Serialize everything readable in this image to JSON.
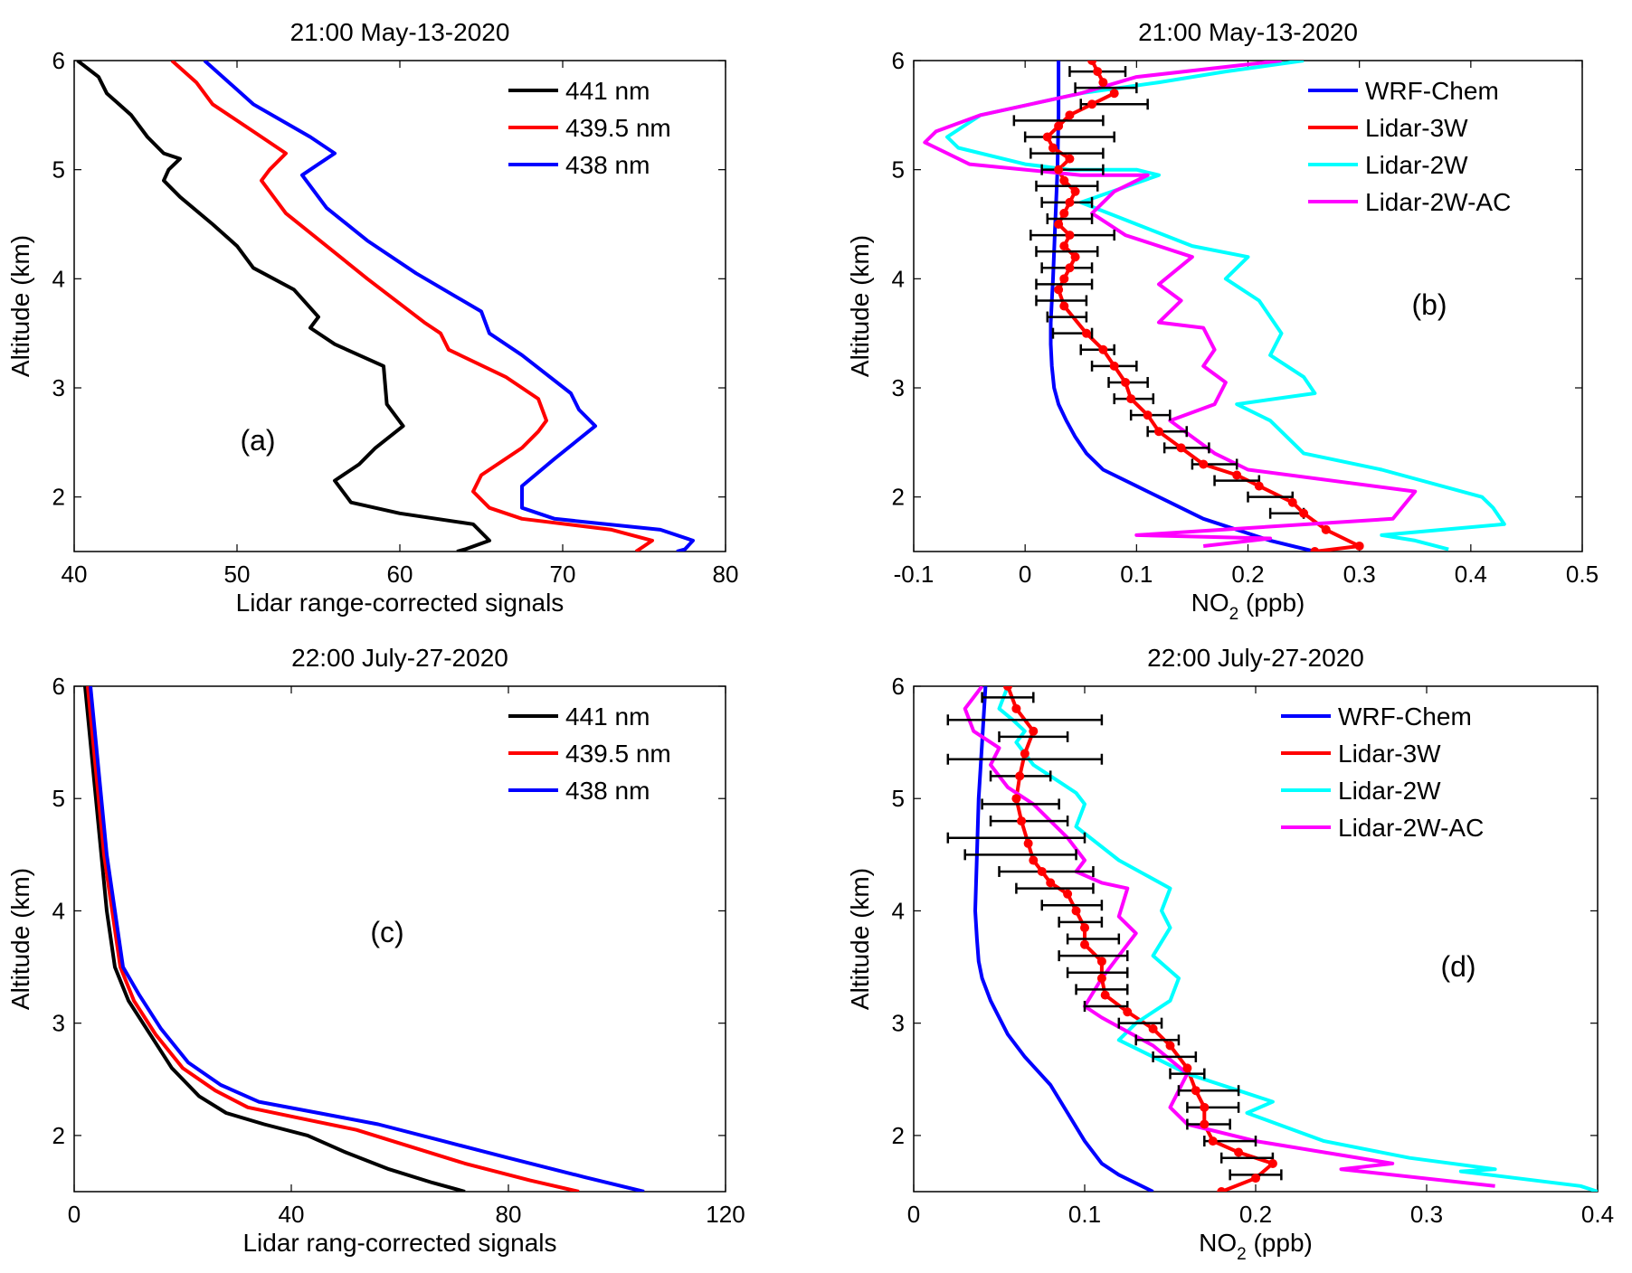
{
  "colors": {
    "wave_441": "#000000",
    "wave_439_5": "#ff0000",
    "wave_438": "#0000ff",
    "wrf": "#0000ff",
    "lidar3w": "#ff0000",
    "lidar2w": "#00ffff",
    "lidar2wac": "#ff00ff",
    "errorbar": "#000000"
  },
  "chart_data": [
    {
      "panel": "a",
      "type": "line",
      "title": "21:00 May-13-2020",
      "xlabel": "Lidar range-corrected signals",
      "ylabel": "Altitude (km)",
      "xlim": [
        40,
        80
      ],
      "ylim": [
        1.5,
        6
      ],
      "xticks": [
        "40",
        "50",
        "60",
        "70",
        "80"
      ],
      "yticks": [
        "2",
        "3",
        "4",
        "5",
        "6"
      ],
      "annotation": "(a)",
      "legend_position": "top-right",
      "series": [
        {
          "name": "441 nm",
          "color_key": "wave_441",
          "x": [
            40.2,
            41.5,
            42,
            43.5,
            44.5,
            45.5,
            46.5,
            45.8,
            45.5,
            46.5,
            48.5,
            50,
            51,
            53.5,
            55,
            54.5,
            56,
            59,
            59.2,
            60.2,
            58.5,
            57.5,
            56,
            57,
            60,
            64.5,
            65.5,
            64,
            63.5
          ],
          "y": [
            6,
            5.85,
            5.7,
            5.5,
            5.3,
            5.15,
            5.1,
            5.0,
            4.9,
            4.75,
            4.5,
            4.3,
            4.1,
            3.9,
            3.65,
            3.55,
            3.4,
            3.2,
            2.85,
            2.65,
            2.45,
            2.3,
            2.15,
            1.95,
            1.85,
            1.75,
            1.6,
            1.52,
            1.5
          ]
        },
        {
          "name": "439.5 nm",
          "color_key": "wave_439_5",
          "x": [
            46,
            47.5,
            48.5,
            51,
            53,
            52,
            51.5,
            53,
            55.5,
            58,
            61.5,
            62.5,
            63,
            66.5,
            68.5,
            69,
            68.5,
            67.5,
            65,
            64.5,
            65.5,
            67.5,
            73,
            75.5,
            75,
            74.5
          ],
          "y": [
            6,
            5.8,
            5.6,
            5.35,
            5.15,
            5.0,
            4.9,
            4.6,
            4.3,
            4.0,
            3.6,
            3.5,
            3.35,
            3.1,
            2.9,
            2.7,
            2.6,
            2.45,
            2.2,
            2.05,
            1.9,
            1.8,
            1.7,
            1.6,
            1.55,
            1.5
          ]
        },
        {
          "name": "438 nm",
          "color_key": "wave_438",
          "x": [
            48,
            49.5,
            51,
            54.5,
            56,
            55,
            54,
            55.5,
            58,
            61,
            65,
            65.5,
            67.5,
            70.5,
            71,
            72,
            69.5,
            67.5,
            67.5,
            69.5,
            76,
            78,
            77.5,
            77
          ],
          "y": [
            6,
            5.8,
            5.6,
            5.3,
            5.15,
            5.05,
            4.95,
            4.65,
            4.35,
            4.05,
            3.7,
            3.5,
            3.3,
            2.95,
            2.8,
            2.65,
            2.35,
            2.1,
            1.9,
            1.8,
            1.7,
            1.6,
            1.52,
            1.5
          ]
        }
      ]
    },
    {
      "panel": "b",
      "type": "line",
      "title": "21:00 May-13-2020",
      "xlabel_main": "NO",
      "xlabel_sub": "2",
      "xlabel_tail": " (ppb)",
      "ylabel": "Altitude (km)",
      "xlim": [
        -0.1,
        0.5
      ],
      "ylim": [
        1.5,
        6
      ],
      "xticks": [
        "-0.1",
        "0",
        "0.1",
        "0.2",
        "0.3",
        "0.4",
        "0.5"
      ],
      "yticks": [
        "2",
        "3",
        "4",
        "5",
        "6"
      ],
      "annotation": "(b)",
      "legend_position": "top-right",
      "series": [
        {
          "name": "WRF-Chem",
          "color_key": "wrf",
          "x": [
            0.03,
            0.03,
            0.029,
            0.027,
            0.025,
            0.024,
            0.023,
            0.023,
            0.024,
            0.026,
            0.03,
            0.037,
            0.045,
            0.055,
            0.07,
            0.1,
            0.13,
            0.16,
            0.19,
            0.22,
            0.26
          ],
          "y": [
            6,
            5.5,
            5.0,
            4.5,
            4.0,
            3.8,
            3.6,
            3.4,
            3.2,
            3.0,
            2.85,
            2.7,
            2.55,
            2.4,
            2.25,
            2.1,
            1.95,
            1.8,
            1.7,
            1.6,
            1.5
          ]
        },
        {
          "name": "Lidar-3W",
          "color_key": "lidar3w",
          "x": [
            0.06,
            0.065,
            0.07,
            0.08,
            0.06,
            0.04,
            0.03,
            0.02,
            0.025,
            0.04,
            0.03,
            0.035,
            0.045,
            0.04,
            0.035,
            0.03,
            0.04,
            0.035,
            0.045,
            0.04,
            0.035,
            0.03,
            0.035,
            0.055,
            0.07,
            0.08,
            0.09,
            0.095,
            0.11,
            0.12,
            0.14,
            0.16,
            0.19,
            0.21,
            0.24,
            0.25,
            0.27,
            0.3,
            0.26
          ],
          "y": [
            6,
            5.9,
            5.8,
            5.7,
            5.6,
            5.5,
            5.4,
            5.3,
            5.2,
            5.1,
            5.0,
            4.9,
            4.8,
            4.7,
            4.6,
            4.5,
            4.4,
            4.3,
            4.2,
            4.1,
            4.0,
            3.9,
            3.75,
            3.5,
            3.35,
            3.2,
            3.05,
            2.9,
            2.75,
            2.6,
            2.45,
            2.3,
            2.2,
            2.1,
            1.95,
            1.85,
            1.7,
            1.55,
            1.5
          ]
        },
        {
          "name": "Lidar-2W",
          "color_key": "lidar2w",
          "x": [
            0.25,
            0.18,
            0.12,
            0.05,
            -0.04,
            -0.07,
            -0.06,
            0.0,
            0.04,
            0.1,
            0.12,
            0.05,
            0.1,
            0.15,
            0.2,
            0.18,
            0.21,
            0.23,
            0.22,
            0.25,
            0.26,
            0.19,
            0.22,
            0.25,
            0.32,
            0.41,
            0.42,
            0.43,
            0.32,
            0.35,
            0.38
          ],
          "y": [
            6,
            5.9,
            5.8,
            5.7,
            5.5,
            5.3,
            5.2,
            5.05,
            5.0,
            5.0,
            4.95,
            4.7,
            4.5,
            4.3,
            4.2,
            4.0,
            3.8,
            3.5,
            3.3,
            3.1,
            2.95,
            2.85,
            2.7,
            2.4,
            2.25,
            2.0,
            1.9,
            1.75,
            1.65,
            1.6,
            1.52
          ]
        },
        {
          "name": "Lidar-2W-AC",
          "color_key": "lidar2wac",
          "x": [
            0.23,
            0.1,
            0.05,
            -0.04,
            -0.08,
            -0.09,
            -0.05,
            0.05,
            0.11,
            0.08,
            0.06,
            0.09,
            0.15,
            0.12,
            0.14,
            0.12,
            0.16,
            0.17,
            0.16,
            0.18,
            0.17,
            0.13,
            0.17,
            0.2,
            0.35,
            0.33,
            0.1,
            0.22,
            0.16
          ],
          "y": [
            6,
            5.85,
            5.7,
            5.5,
            5.35,
            5.25,
            5.05,
            4.95,
            4.95,
            4.8,
            4.6,
            4.4,
            4.2,
            3.95,
            3.8,
            3.6,
            3.55,
            3.35,
            3.2,
            3.05,
            2.85,
            2.7,
            2.4,
            2.25,
            2.05,
            1.8,
            1.65,
            1.62,
            1.55
          ]
        }
      ],
      "errorbars": {
        "series": "Lidar-3W",
        "y": [
          5.9,
          5.75,
          5.6,
          5.45,
          5.3,
          5.15,
          5.0,
          4.85,
          4.7,
          4.55,
          4.4,
          4.25,
          4.1,
          3.95,
          3.8,
          3.65,
          3.5,
          3.35,
          3.2,
          3.05,
          2.9,
          2.75,
          2.6,
          2.45,
          2.3,
          2.15,
          2.0,
          1.85
        ],
        "lo": [
          0.04,
          0.045,
          0.05,
          -0.01,
          0.0,
          0.005,
          0.015,
          0.01,
          0.015,
          0.02,
          0.005,
          0.01,
          0.015,
          0.01,
          0.01,
          0.02,
          0.025,
          0.05,
          0.06,
          0.075,
          0.08,
          0.095,
          0.11,
          0.125,
          0.15,
          0.17,
          0.2,
          0.22
        ],
        "hi": [
          0.09,
          0.1,
          0.11,
          0.07,
          0.08,
          0.07,
          0.07,
          0.065,
          0.06,
          0.06,
          0.08,
          0.065,
          0.06,
          0.06,
          0.055,
          0.055,
          0.06,
          0.08,
          0.1,
          0.11,
          0.115,
          0.13,
          0.145,
          0.165,
          0.19,
          0.21,
          0.24,
          0.25
        ]
      }
    },
    {
      "panel": "c",
      "type": "line",
      "title": "22:00 July-27-2020",
      "xlabel": "Lidar rang-corrected signals",
      "ylabel": "Altitude (km)",
      "xlim": [
        0,
        120
      ],
      "ylim": [
        1.5,
        6
      ],
      "xticks": [
        "0",
        "40",
        "80",
        "120"
      ],
      "yticks": [
        "2",
        "3",
        "4",
        "5",
        "6"
      ],
      "annotation": "(c)",
      "legend_position": "top-right",
      "series": [
        {
          "name": "441 nm",
          "color_key": "wave_441",
          "x": [
            2,
            3,
            4,
            5,
            6,
            7.5,
            10,
            14,
            18,
            23,
            28,
            35,
            43,
            50,
            58,
            66,
            72
          ],
          "y": [
            6,
            5.5,
            5.0,
            4.5,
            4.0,
            3.5,
            3.2,
            2.9,
            2.6,
            2.35,
            2.2,
            2.1,
            2.0,
            1.85,
            1.7,
            1.58,
            1.5
          ]
        },
        {
          "name": "439.5 nm",
          "color_key": "wave_439_5",
          "x": [
            2.5,
            3.5,
            4.5,
            5.5,
            7,
            8.5,
            11,
            15,
            20,
            26,
            32,
            42,
            52,
            62,
            72,
            84,
            93
          ],
          "y": [
            6,
            5.5,
            5.0,
            4.5,
            4.0,
            3.5,
            3.2,
            2.9,
            2.6,
            2.4,
            2.25,
            2.15,
            2.05,
            1.9,
            1.75,
            1.6,
            1.5
          ]
        },
        {
          "name": "438 nm",
          "color_key": "wave_438",
          "x": [
            3,
            4,
            5,
            6,
            7.5,
            9,
            12,
            16,
            21,
            27,
            34,
            45,
            56,
            68,
            80,
            94,
            105
          ],
          "y": [
            6,
            5.5,
            5.0,
            4.5,
            4.0,
            3.5,
            3.25,
            2.95,
            2.65,
            2.45,
            2.3,
            2.2,
            2.1,
            1.95,
            1.8,
            1.63,
            1.5
          ]
        }
      ]
    },
    {
      "panel": "d",
      "type": "line",
      "title": "22:00 July-27-2020",
      "xlabel_main": "NO",
      "xlabel_sub": "2",
      "xlabel_tail": " (ppb)",
      "ylabel": "Altitude (km)",
      "xlim": [
        0,
        0.4
      ],
      "ylim": [
        1.5,
        6
      ],
      "xticks": [
        "0",
        "0.1",
        "0.2",
        "0.3",
        "0.4"
      ],
      "yticks": [
        "2",
        "3",
        "4",
        "5",
        "6"
      ],
      "annotation": "(d)",
      "legend_position": "top-right",
      "series": [
        {
          "name": "WRF-Chem",
          "color_key": "wrf",
          "x": [
            0.042,
            0.04,
            0.038,
            0.037,
            0.036,
            0.037,
            0.038,
            0.04,
            0.045,
            0.055,
            0.065,
            0.08,
            0.09,
            0.1,
            0.11,
            0.12,
            0.14
          ],
          "y": [
            6,
            5.5,
            5.0,
            4.5,
            4.0,
            3.75,
            3.55,
            3.4,
            3.2,
            2.9,
            2.7,
            2.45,
            2.2,
            1.95,
            1.75,
            1.65,
            1.5
          ]
        },
        {
          "name": "Lidar-3W",
          "color_key": "lidar3w",
          "x": [
            0.055,
            0.06,
            0.07,
            0.065,
            0.062,
            0.06,
            0.063,
            0.067,
            0.07,
            0.075,
            0.08,
            0.09,
            0.095,
            0.1,
            0.1,
            0.11,
            0.11,
            0.112,
            0.125,
            0.14,
            0.15,
            0.16,
            0.165,
            0.17,
            0.17,
            0.175,
            0.19,
            0.21,
            0.2,
            0.18
          ],
          "y": [
            6,
            5.8,
            5.6,
            5.4,
            5.2,
            5.0,
            4.8,
            4.6,
            4.45,
            4.35,
            4.25,
            4.15,
            4.0,
            3.85,
            3.7,
            3.55,
            3.4,
            3.25,
            3.1,
            2.95,
            2.8,
            2.6,
            2.4,
            2.25,
            2.1,
            1.95,
            1.85,
            1.75,
            1.62,
            1.5
          ]
        },
        {
          "name": "Lidar-2W",
          "color_key": "lidar2w",
          "x": [
            0.055,
            0.05,
            0.058,
            0.065,
            0.06,
            0.07,
            0.085,
            0.095,
            0.1,
            0.095,
            0.12,
            0.15,
            0.145,
            0.15,
            0.14,
            0.155,
            0.15,
            0.13,
            0.12,
            0.14,
            0.16,
            0.19,
            0.21,
            0.195,
            0.24,
            0.29,
            0.34,
            0.32,
            0.39,
            0.4
          ],
          "y": [
            6,
            5.8,
            5.7,
            5.6,
            5.5,
            5.3,
            5.15,
            5.05,
            4.95,
            4.75,
            4.45,
            4.2,
            4.0,
            3.85,
            3.6,
            3.4,
            3.2,
            3.0,
            2.85,
            2.7,
            2.55,
            2.4,
            2.3,
            2.2,
            1.95,
            1.8,
            1.7,
            1.68,
            1.55,
            1.5
          ]
        },
        {
          "name": "Lidar-2W-AC",
          "color_key": "lidar2wac",
          "x": [
            0.04,
            0.03,
            0.035,
            0.05,
            0.045,
            0.055,
            0.07,
            0.08,
            0.09,
            0.1,
            0.095,
            0.11,
            0.125,
            0.12,
            0.13,
            0.12,
            0.11,
            0.1,
            0.11,
            0.14,
            0.16,
            0.15,
            0.16,
            0.2,
            0.28,
            0.25,
            0.34
          ],
          "y": [
            6,
            5.8,
            5.6,
            5.45,
            5.3,
            5.1,
            4.95,
            4.8,
            4.65,
            4.45,
            4.35,
            4.25,
            4.2,
            3.95,
            3.8,
            3.6,
            3.4,
            3.15,
            3.05,
            2.8,
            2.55,
            2.25,
            2.1,
            1.95,
            1.75,
            1.7,
            1.55
          ]
        }
      ],
      "errorbars": {
        "series": "Lidar-3W",
        "y": [
          5.9,
          5.7,
          5.55,
          5.35,
          5.2,
          4.95,
          4.8,
          4.65,
          4.5,
          4.35,
          4.2,
          4.05,
          3.9,
          3.75,
          3.6,
          3.45,
          3.3,
          3.15,
          3.0,
          2.85,
          2.7,
          2.55,
          2.4,
          2.25,
          2.1,
          1.95,
          1.8,
          1.65
        ],
        "lo": [
          0.04,
          0.02,
          0.05,
          0.02,
          0.045,
          0.04,
          0.045,
          0.02,
          0.03,
          0.05,
          0.06,
          0.075,
          0.085,
          0.09,
          0.085,
          0.09,
          0.095,
          0.1,
          0.12,
          0.13,
          0.14,
          0.15,
          0.155,
          0.16,
          0.16,
          0.17,
          0.18,
          0.185
        ],
        "hi": [
          0.07,
          0.11,
          0.09,
          0.11,
          0.08,
          0.085,
          0.09,
          0.1,
          0.095,
          0.105,
          0.105,
          0.11,
          0.11,
          0.12,
          0.125,
          0.125,
          0.125,
          0.125,
          0.145,
          0.155,
          0.165,
          0.17,
          0.19,
          0.19,
          0.185,
          0.2,
          0.21,
          0.215
        ]
      }
    }
  ]
}
